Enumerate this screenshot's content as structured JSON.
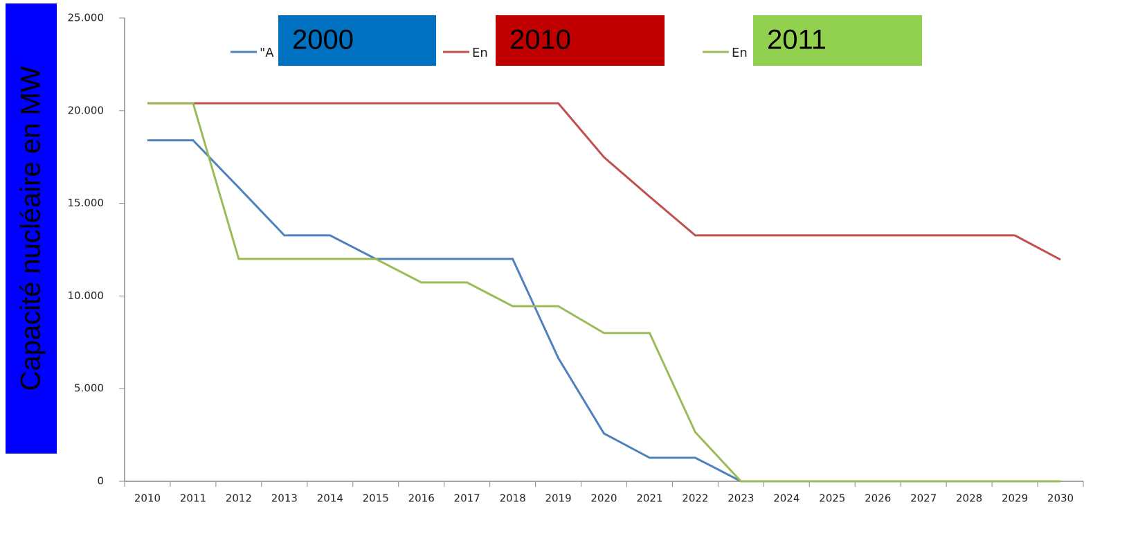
{
  "chart_data": {
    "type": "line",
    "y_label": "Capacité nucléaire en MW",
    "categories": [
      "2010",
      "2011",
      "2012",
      "2013",
      "2014",
      "2015",
      "2016",
      "2017",
      "2018",
      "2019",
      "2020",
      "2021",
      "2022",
      "2023",
      "2024",
      "2025",
      "2026",
      "2027",
      "2028",
      "2029",
      "2030"
    ],
    "ylim": [
      0,
      25000
    ],
    "yticks": [
      0,
      {
        "value": 5000,
        "label": "5.000"
      },
      {
        "value": 10000,
        "label": "10.000"
      },
      {
        "value": 15000,
        "label": "15.000"
      },
      {
        "value": 20000,
        "label": "20.000"
      },
      {
        "value": 25000,
        "label": "25.000"
      }
    ],
    "series": [
      {
        "name": "2000",
        "legend_prefix": "\"A",
        "color": "#4f81bd",
        "box_color": "#0070c0",
        "values": [
          18400,
          18400,
          15850,
          13270,
          13270,
          12000,
          12000,
          12000,
          12000,
          6650,
          2580,
          1270,
          1270,
          0,
          0,
          0,
          0,
          0,
          0,
          0,
          0
        ]
      },
      {
        "name": "2010",
        "legend_prefix": "En",
        "color": "#c0504d",
        "box_color": "#c00000",
        "values": [
          20400,
          20400,
          20400,
          20400,
          20400,
          20400,
          20400,
          20400,
          20400,
          20400,
          17490,
          15360,
          13270,
          13270,
          13270,
          13270,
          13270,
          13270,
          13270,
          13270,
          11960
        ]
      },
      {
        "name": "2011",
        "legend_prefix": "En",
        "color": "#9bbb59",
        "box_color": "#92d050",
        "values": [
          20400,
          20400,
          12000,
          12000,
          12000,
          12000,
          10730,
          10730,
          9450,
          9450,
          8000,
          8000,
          2650,
          0,
          0,
          0,
          0,
          0,
          0,
          0,
          0
        ]
      }
    ]
  }
}
